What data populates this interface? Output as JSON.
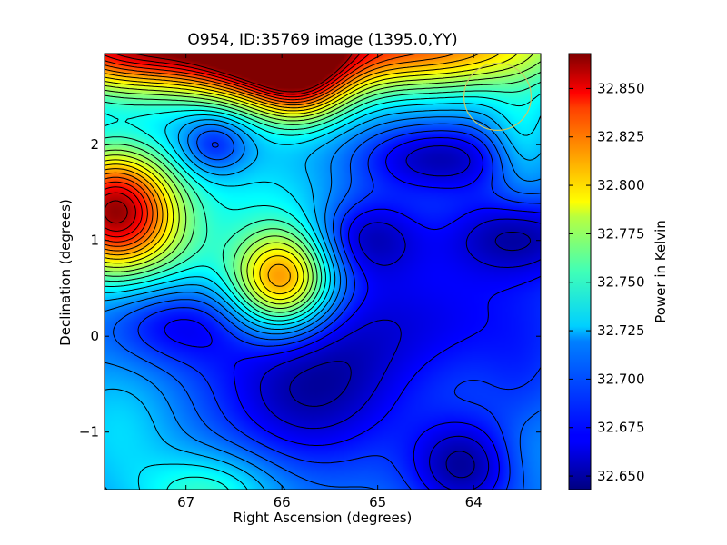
{
  "chart_data": {
    "type": "heatmap",
    "title": "O954, ID:35769 image (1395.0,YY)",
    "xlabel": "Right Ascension (degrees)",
    "ylabel": "Declination (degrees)",
    "xlim": [
      67.85,
      63.3
    ],
    "ylim": [
      -1.6,
      2.95
    ],
    "x_ticks": [
      {
        "value": 67,
        "label": "67"
      },
      {
        "value": 66,
        "label": "66"
      },
      {
        "value": 65,
        "label": "65"
      },
      {
        "value": 64,
        "label": "64"
      }
    ],
    "y_ticks": [
      {
        "value": -1,
        "label": "−1"
      },
      {
        "value": 0,
        "label": "0"
      },
      {
        "value": 1,
        "label": "1"
      },
      {
        "value": 2,
        "label": "2"
      }
    ],
    "colorbar": {
      "label": "Power in Kelvin",
      "colormap": "jet",
      "range": [
        32.643,
        32.868
      ],
      "ticks": [
        "32.650",
        "32.675",
        "32.700",
        "32.725",
        "32.750",
        "32.775",
        "32.800",
        "32.825",
        "32.850"
      ]
    },
    "field_base": 32.7,
    "features": [
      {
        "ra": 67.75,
        "dec": 1.3,
        "amp": 0.16,
        "sx": 0.45,
        "sy": 0.45
      },
      {
        "ra": 66.0,
        "dec": 0.58,
        "amp": 0.12,
        "sx": 0.38,
        "sy": 0.38
      },
      {
        "ra": 67.5,
        "dec": 3.1,
        "amp": 0.16,
        "sx": 0.9,
        "sy": 0.38
      },
      {
        "ra": 66.1,
        "dec": 3.05,
        "amp": 0.14,
        "sx": 0.55,
        "sy": 0.42
      },
      {
        "ra": 64.6,
        "dec": 3.05,
        "amp": 0.12,
        "sx": 1.2,
        "sy": 0.35
      },
      {
        "ra": 65.8,
        "dec": 2.6,
        "amp": 0.06,
        "sx": 0.35,
        "sy": 0.3
      },
      {
        "ra": 66.7,
        "dec": 2.0,
        "amp": -0.035,
        "sx": 0.25,
        "sy": 0.22
      },
      {
        "ra": 66.3,
        "dec": 1.5,
        "amp": 0.02,
        "sx": 0.7,
        "sy": 0.4
      },
      {
        "ra": 67.0,
        "dec": 0.8,
        "amp": 0.02,
        "sx": 0.4,
        "sy": 0.4
      },
      {
        "ra": 64.35,
        "dec": 1.85,
        "amp": -0.045,
        "sx": 0.6,
        "sy": 0.25
      },
      {
        "ra": 65.1,
        "dec": 1.05,
        "amp": -0.04,
        "sx": 0.4,
        "sy": 0.3
      },
      {
        "ra": 63.55,
        "dec": 1.05,
        "amp": -0.045,
        "sx": 0.55,
        "sy": 0.3
      },
      {
        "ra": 64.6,
        "dec": 0.2,
        "amp": -0.03,
        "sx": 1.3,
        "sy": 0.5
      },
      {
        "ra": 67.1,
        "dec": 0.15,
        "amp": -0.03,
        "sx": 0.5,
        "sy": 0.3
      },
      {
        "ra": 65.7,
        "dec": -0.6,
        "amp": -0.045,
        "sx": 0.7,
        "sy": 0.55
      },
      {
        "ra": 64.1,
        "dec": -1.35,
        "amp": -0.05,
        "sx": 0.4,
        "sy": 0.35
      },
      {
        "ra": 63.5,
        "dec": -1.2,
        "amp": 0.01,
        "sx": 0.3,
        "sy": 0.3
      },
      {
        "ra": 67.7,
        "dec": -0.95,
        "amp": 0.02,
        "sx": 0.4,
        "sy": 0.45
      },
      {
        "ra": 66.8,
        "dec": -1.65,
        "amp": 0.04,
        "sx": 0.5,
        "sy": 0.3
      },
      {
        "ra": 63.5,
        "dec": 2.0,
        "amp": 0.03,
        "sx": 0.25,
        "sy": 0.4
      },
      {
        "ra": 63.5,
        "dec": -0.5,
        "amp": -0.01,
        "sx": 0.3,
        "sy": 0.4
      }
    ],
    "beam_circle": {
      "ra": 63.75,
      "dec": 2.5,
      "radius": 0.35,
      "color": "#c8c864"
    },
    "contour_count": 22,
    "contour_color": "#000000"
  }
}
